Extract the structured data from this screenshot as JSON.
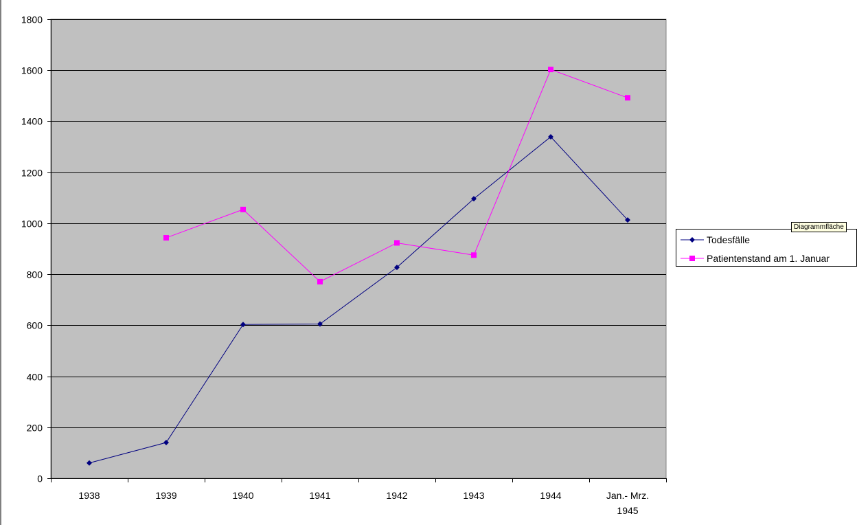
{
  "chart_data": {
    "type": "line",
    "categories": [
      "1938",
      "1939",
      "1940",
      "1941",
      "1942",
      "1943",
      "1944",
      "Jan.- Mrz. 1945"
    ],
    "category_lines": [
      [
        "1938"
      ],
      [
        "1939"
      ],
      [
        "1940"
      ],
      [
        "1941"
      ],
      [
        "1942"
      ],
      [
        "1943"
      ],
      [
        "1944"
      ],
      [
        "Jan.- Mrz.",
        "1945"
      ]
    ],
    "series": [
      {
        "name": "Todesfälle",
        "values": [
          60,
          140,
          603,
          605,
          827,
          1096,
          1339,
          1013
        ],
        "color": "#000080",
        "marker": "diamond"
      },
      {
        "name": "Patientenstand am 1. Januar",
        "values": [
          null,
          943,
          1054,
          771,
          923,
          875,
          1603,
          1492
        ],
        "color": "#ff00ff",
        "marker": "square"
      }
    ],
    "ylim": [
      0,
      1800
    ],
    "yticks": [
      0,
      200,
      400,
      600,
      800,
      1000,
      1200,
      1400,
      1600,
      1800
    ],
    "grid": true,
    "plot_background": "#c0c0c0",
    "legend_position": "right",
    "title": "",
    "xlabel": "",
    "ylabel": ""
  },
  "tooltip": {
    "text": "Diagrammfläche"
  }
}
